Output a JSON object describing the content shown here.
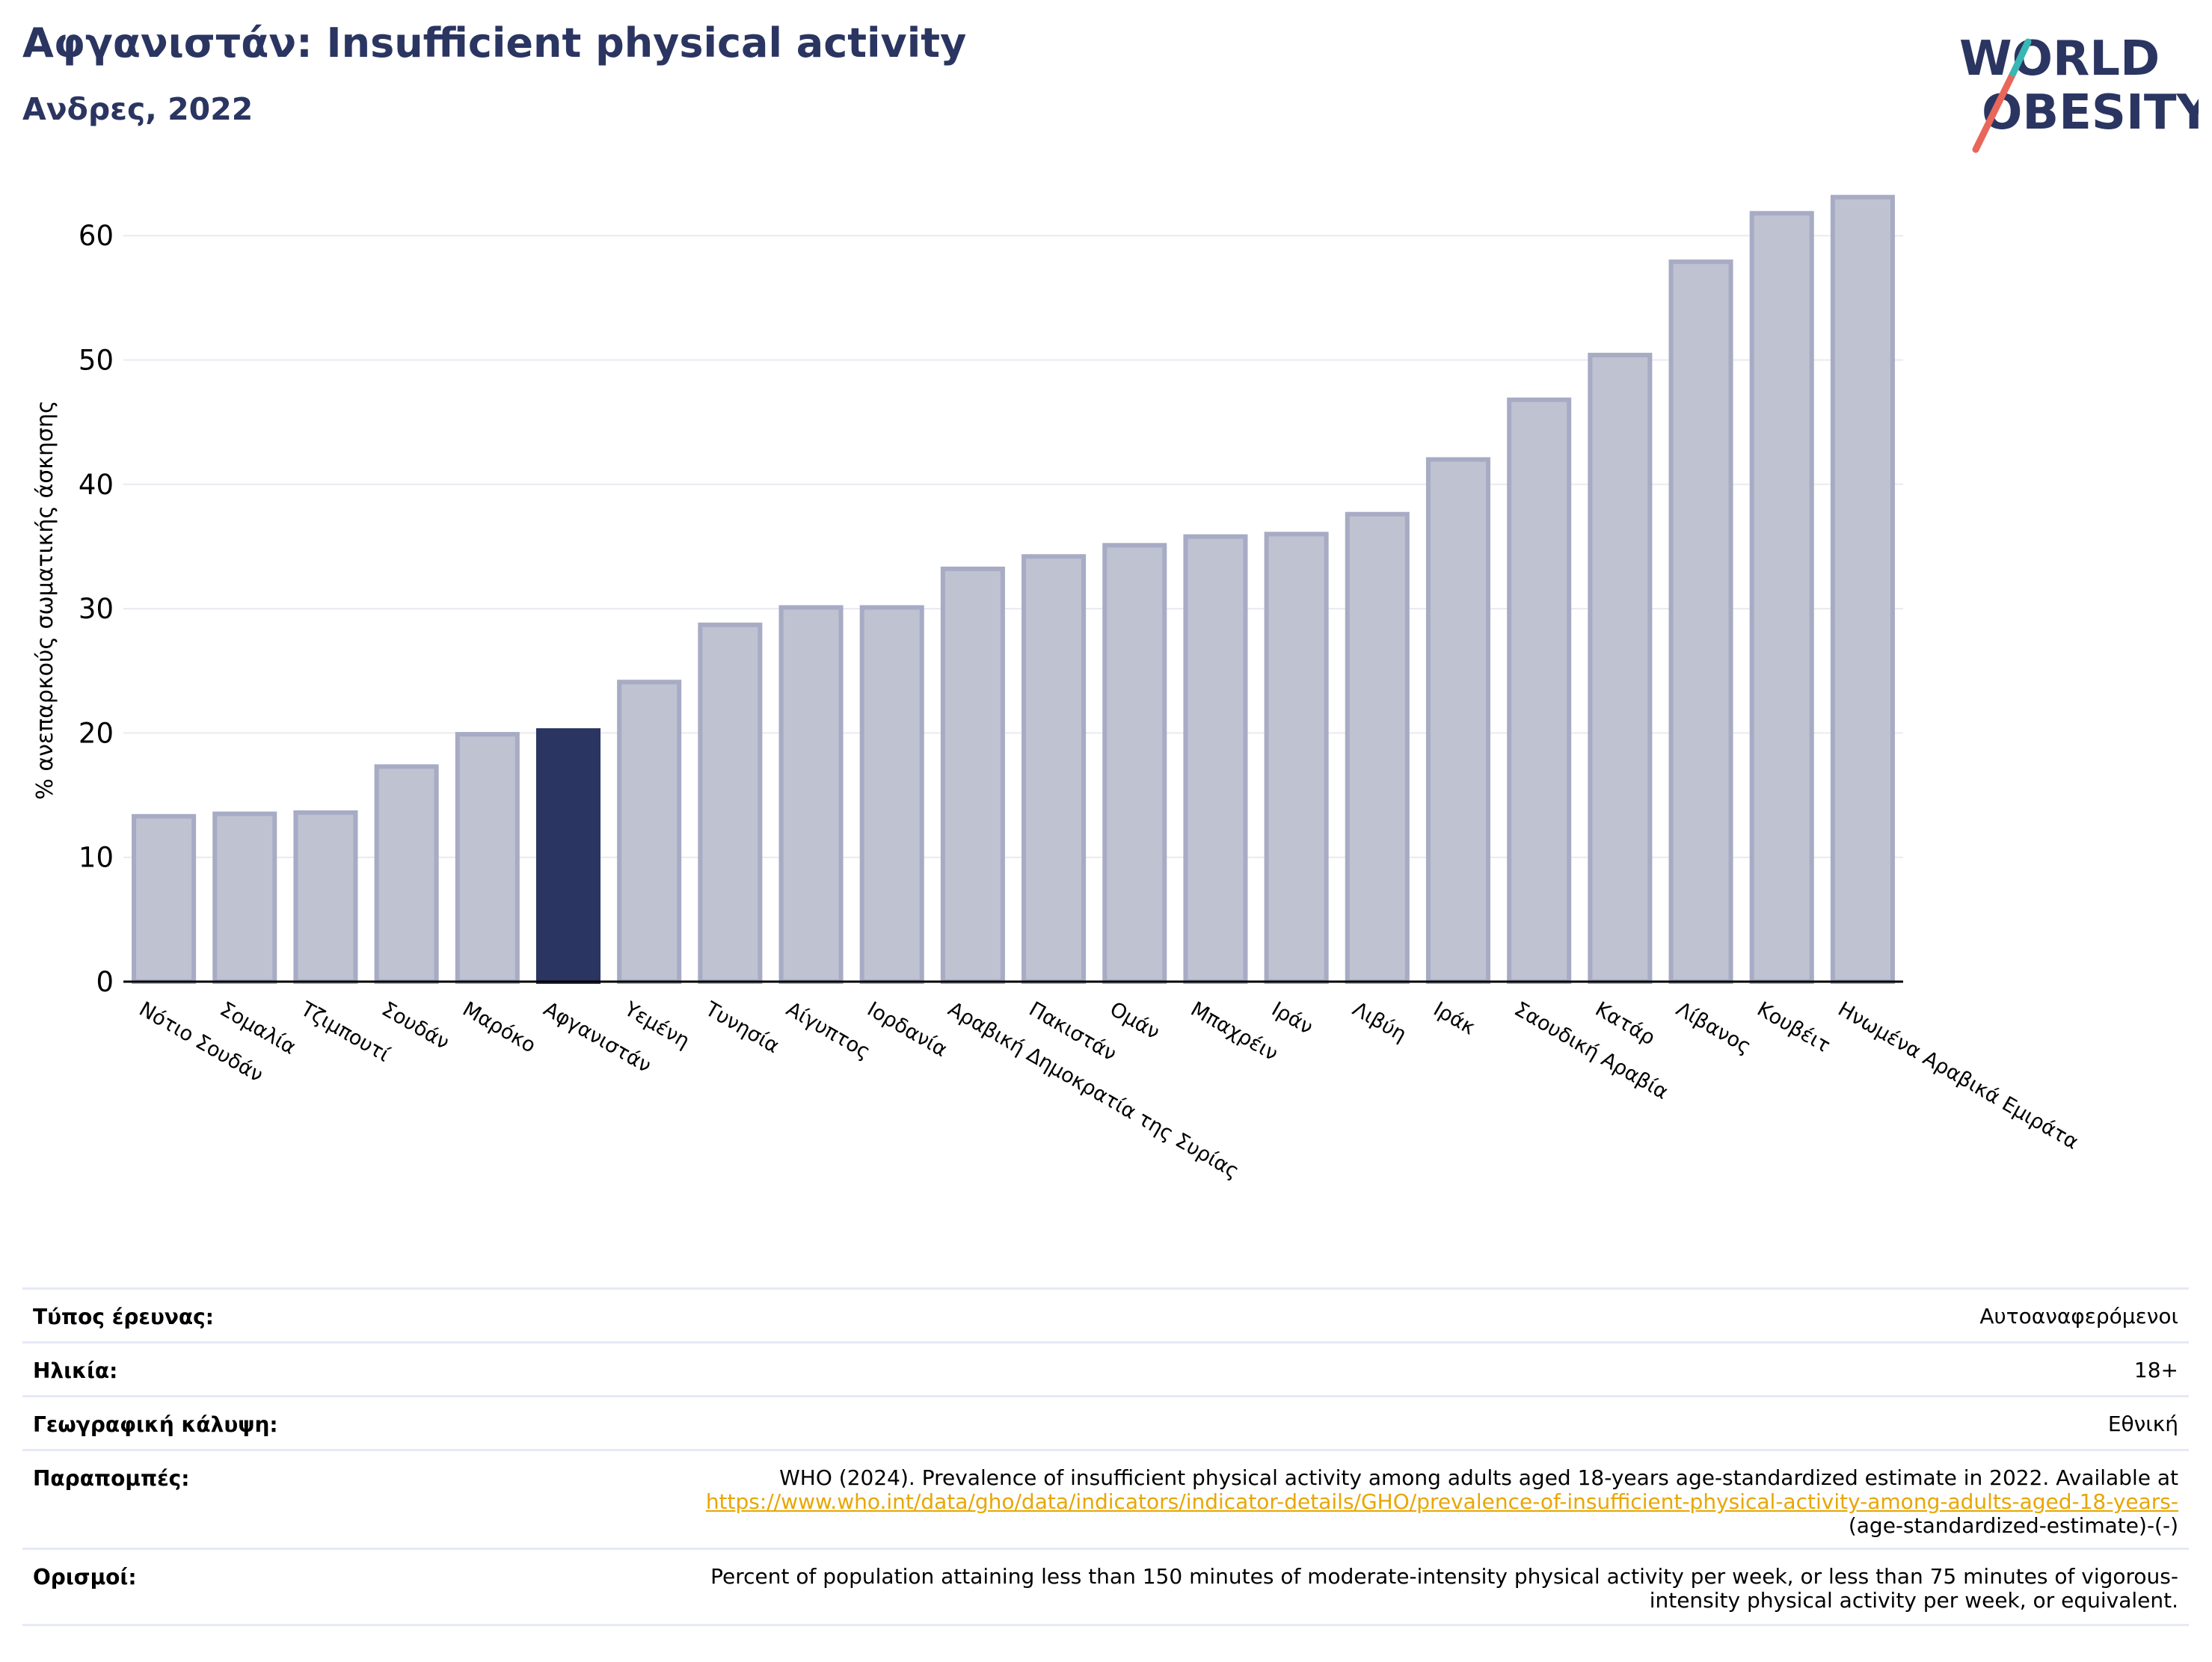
{
  "header": {
    "title": "Αφγανιστάν: Insufficient physical activity",
    "subtitle": "Ανδρες, 2022"
  },
  "logo": {
    "line1": "WORLD",
    "line2": "OBESITY"
  },
  "colors": {
    "title": "#2b3561",
    "highlight": "#2b3561",
    "bar_fill": "#bfc2d0",
    "bar_border": "#a7abc4",
    "accent_slash": "#e8675a",
    "accent_teal": "#3ab7b3"
  },
  "chart_data": {
    "type": "bar",
    "ylabel": "% ανεπαρκούς σωματικής άσκησης",
    "xlabel": "",
    "ylim": [
      0,
      65
    ],
    "yticks": [
      0,
      10,
      20,
      30,
      40,
      50,
      60
    ],
    "grid": true,
    "highlight": "Αφγανιστάν",
    "categories": [
      "Νότιο Σουδάν",
      "Σομαλία",
      "Τζιμπουτί",
      "Σουδάν",
      "Μαρόκο",
      "Αφγανιστάν",
      "Υεμένη",
      "Τυνησία",
      "Αίγυπτος",
      "Ιορδανία",
      "Αραβική Δημοκρατία της Συρίας",
      "Πακιστάν",
      "Ομάν",
      "Μπαχρέιν",
      "Ιράν",
      "Λιβύη",
      "Ιράκ",
      "Σαουδική Αραβία",
      "Κατάρ",
      "Λίβανος",
      "Κουβέιτ",
      "Ηνωμένα Αραβικά Εμιράτα"
    ],
    "values": [
      13.3,
      13.5,
      13.6,
      17.3,
      19.9,
      20.2,
      24.1,
      28.7,
      30.1,
      30.1,
      33.2,
      34.2,
      35.1,
      35.8,
      36.0,
      37.6,
      42.0,
      46.8,
      50.4,
      57.9,
      61.8,
      63.1
    ]
  },
  "meta": {
    "survey_label": "Τύπος έρευνας:",
    "survey_value": "Αυτοαναφερόμενοι",
    "age_label": "Ηλικία:",
    "age_value": "18+",
    "coverage_label": "Γεωγραφική κάλυψη:",
    "coverage_value": "Εθνική",
    "refs_label": "Παραπομπές:",
    "refs_text": "WHO (2024). Prevalence of insufficient physical activity among adults aged 18-years age-standardized estimate in 2022. Available at",
    "refs_link": "https://www.who.int/data/gho/data/indicators/indicator-details/GHO/prevalence-of-insufficient-physical-activity-among-adults-aged-18-years-",
    "refs_tail": "(age-standardized-estimate)-(-)",
    "defs_label": "Ορισμοί:",
    "defs_line1": "Percent of population attaining less than 150 minutes of moderate-intensity physical activity per week, or less than 75 minutes of vigorous-",
    "defs_line2": "intensity physical activity per week, or equivalent."
  }
}
